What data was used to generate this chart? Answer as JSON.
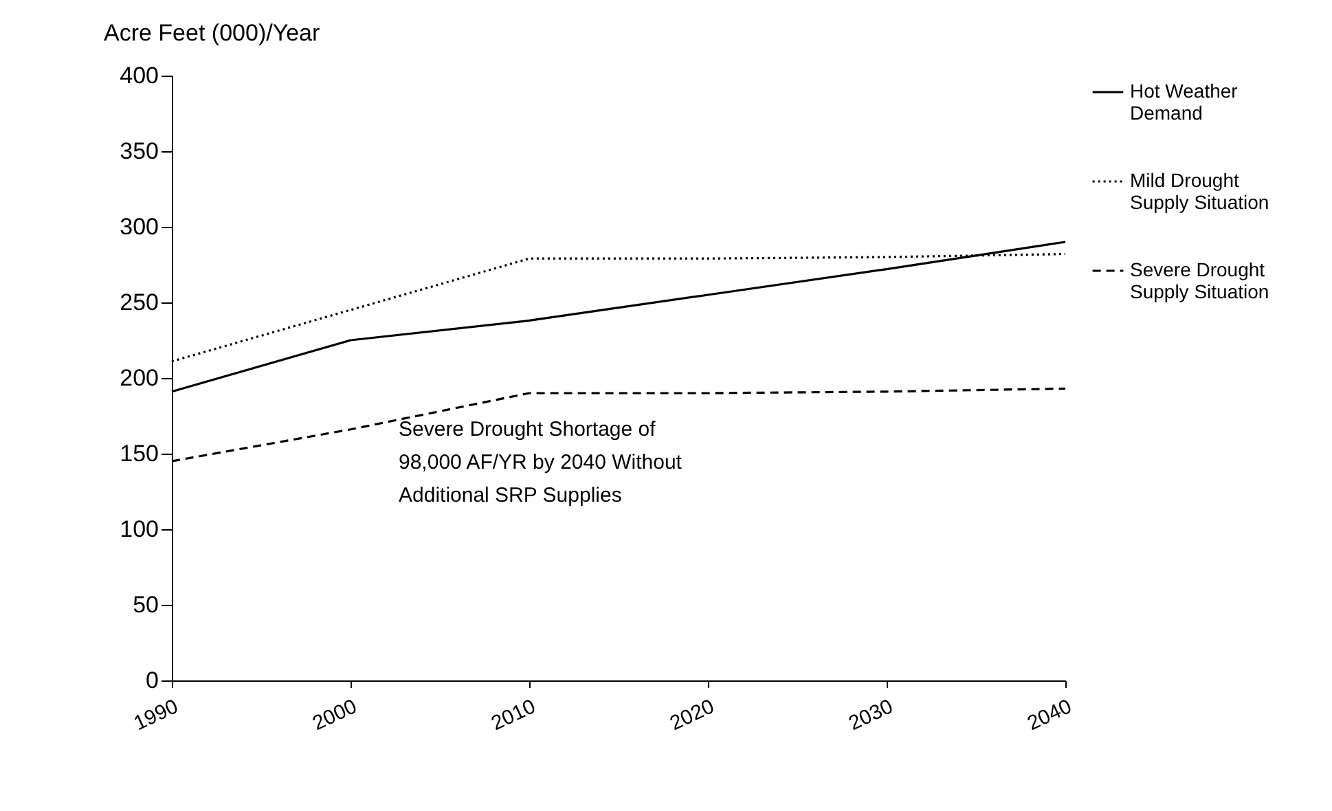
{
  "chart_data": {
    "type": "line",
    "ylabel": "Acre Feet (000)/Year",
    "x": [
      1990,
      2000,
      2010,
      2020,
      2030,
      2040
    ],
    "series": [
      {
        "name": "Hot Weather Demand",
        "color": "#000000",
        "line_style": "solid",
        "values": [
          191,
          225,
          238,
          255,
          272,
          290
        ]
      },
      {
        "name": "Mild Drought Supply Situation",
        "color": "#000000",
        "line_style": "dotted",
        "values": [
          211,
          245,
          279,
          279,
          280,
          282
        ]
      },
      {
        "name": "Severe Drought Supply Situation",
        "color": "#000000",
        "line_style": "dashed",
        "values": [
          145,
          166,
          190,
          190,
          191,
          193
        ]
      }
    ],
    "annotations": [
      "Severe Drought Shortage of\n98,000 AF/YR by 2040 Without\nAdditional SRP Supplies"
    ],
    "xlim": [
      1990,
      2040
    ],
    "xticks": [
      1990,
      2000,
      2010,
      2020,
      2030,
      2040
    ],
    "ylim": [
      0,
      400
    ],
    "yticks": [
      0,
      50,
      100,
      150,
      200,
      250,
      300,
      350,
      400
    ],
    "grid": false,
    "legend": "right",
    "marker": "none"
  }
}
